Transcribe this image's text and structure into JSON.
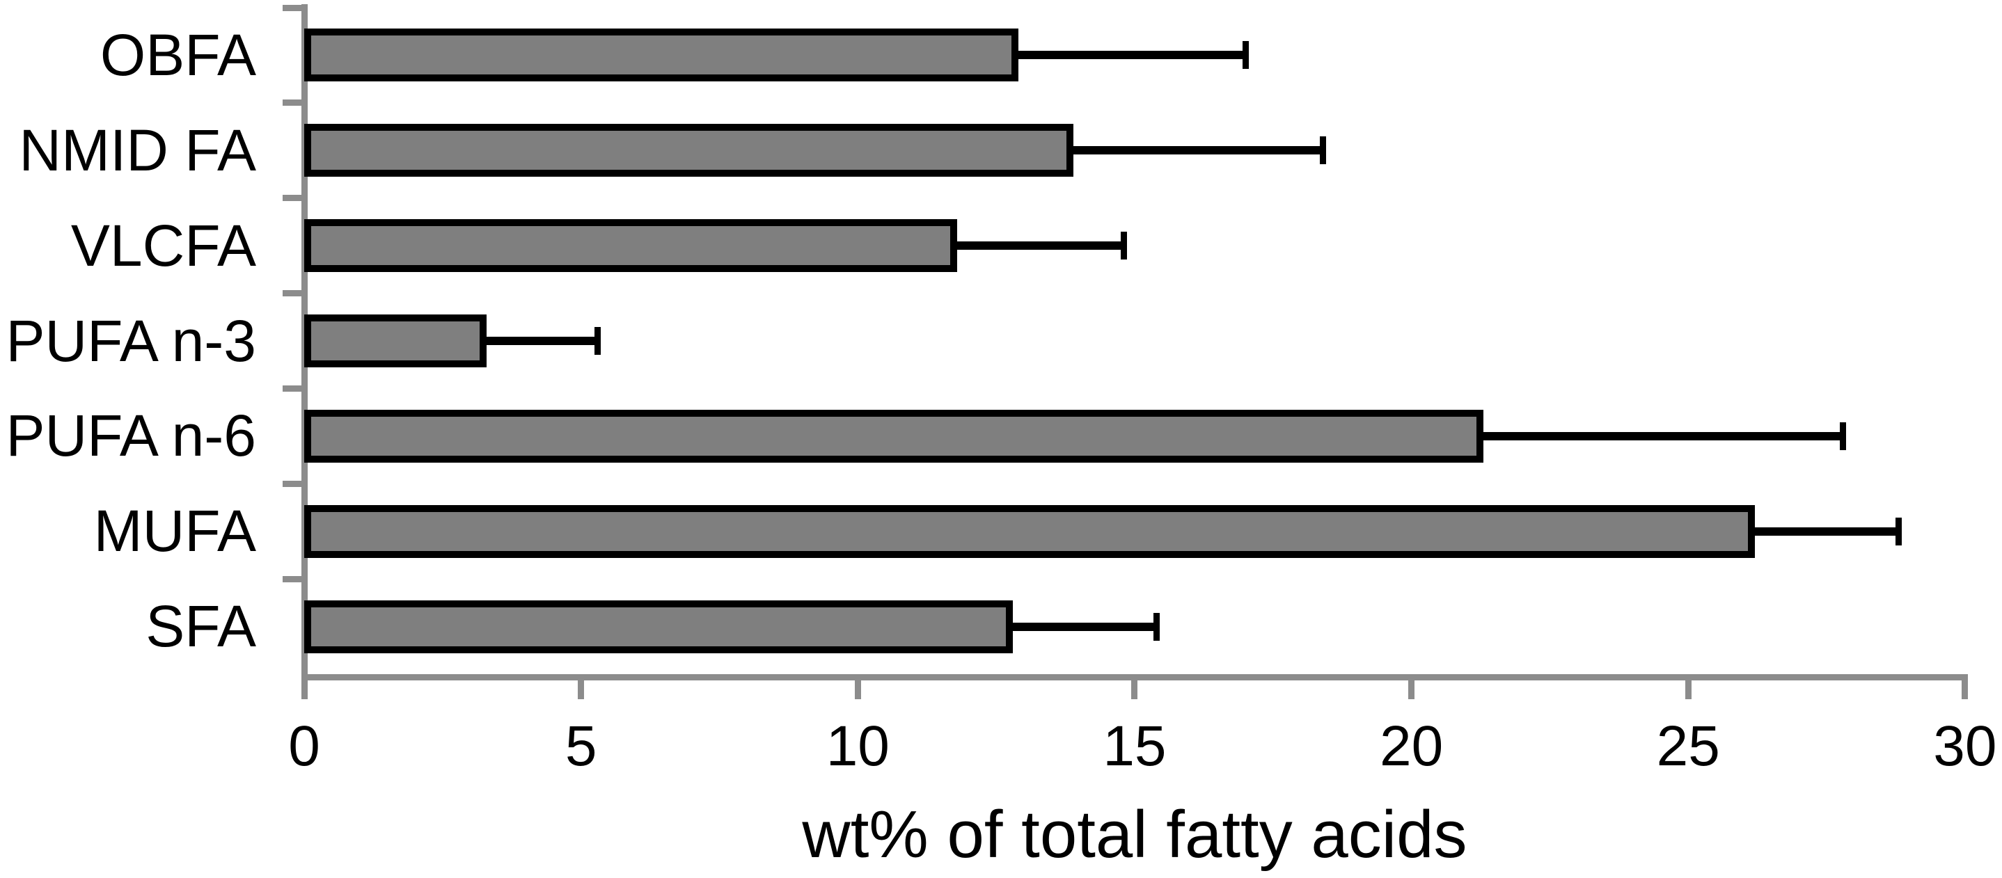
{
  "chart_data": {
    "type": "bar",
    "orientation": "horizontal",
    "title": "",
    "xlabel": "wt% of total fatty acids",
    "ylabel": "",
    "categories": [
      "OBFA",
      "NMID FA",
      "VLCFA",
      "PUFA n-3",
      "PUFA n-6",
      "MUFA",
      "SFA"
    ],
    "values": [
      12.9,
      13.9,
      11.8,
      3.3,
      21.3,
      26.2,
      12.8
    ],
    "error_plus": [
      4.1,
      4.5,
      3.0,
      2.0,
      6.5,
      2.6,
      2.6
    ],
    "xlim": [
      0,
      30
    ],
    "xticks": [
      0,
      5,
      10,
      15,
      20,
      25,
      30
    ],
    "grid": false,
    "legend": null,
    "bar_color": "#7F7F7F",
    "bar_border_color": "#000000",
    "error_color": "#000000",
    "axis_color": "#8C8C8C",
    "text_color": "#000000"
  }
}
